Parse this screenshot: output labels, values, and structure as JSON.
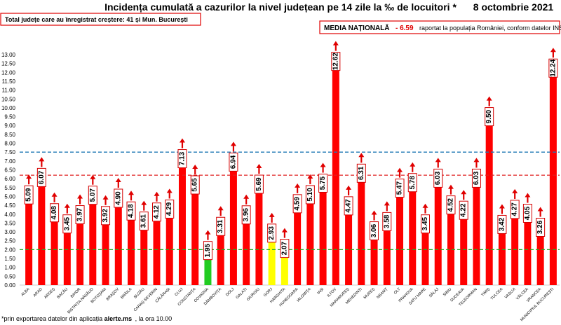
{
  "title": "Incidența cumulată a cazurilor la nivel județean pe 14 zile la ‰ de locuitori *",
  "date": "8 octombrie 2021",
  "summary": "Total județe care au înregistrat creștere:  41 și Mun. București",
  "media": {
    "label": "MEDIA NAȚIONALĂ",
    "value": "- 6.59",
    "rest": "raportat la populația României, conform datelor INS"
  },
  "footer": {
    "prefix": "*prin exportarea datelor din aplicația ",
    "bold": "alerte.ms",
    "suffix": ", la ora 10.00"
  },
  "colors": {
    "bar_red": "#ff0000",
    "bar_green": "#22cc22",
    "bar_yellow": "#ffff00",
    "arrow": "#e00000",
    "line_blue": "#1f78b4",
    "line_red": "#e02020",
    "line_green": "#22aa22"
  },
  "chart_data": {
    "type": "bar",
    "ylim": [
      0,
      13
    ],
    "yticks": [
      "0.00",
      "0.50",
      "1.00",
      "1.50",
      "2.00",
      "2.50",
      "3.00",
      "3.50",
      "4.00",
      "4.50",
      "5.00",
      "5.50",
      "6.00",
      "6.50",
      "7.00",
      "7.50",
      "8.00",
      "8.50",
      "9.00",
      "9.50",
      "10.00",
      "10.50",
      "11.00",
      "11.50",
      "12.00",
      "12.50",
      "13.00"
    ],
    "thresholds": [
      {
        "value": 7.5,
        "color": "blue",
        "style": "dashed"
      },
      {
        "value": 6.2,
        "color": "red",
        "style": "dashed"
      },
      {
        "value": 2.0,
        "color": "green",
        "style": "dashed"
      }
    ],
    "categories": [
      "ALBA",
      "ARAD",
      "ARGEȘ",
      "BACĂU",
      "BIHOR",
      "BISTRIȚA-NĂSĂUD",
      "BOTOȘANI",
      "BRAȘOV",
      "BRĂILA",
      "BUZĂU",
      "CARAȘ-SEVERIN",
      "CĂLĂRAȘI",
      "CLUJ",
      "CONSTANȚA",
      "COVASNA",
      "DÂMBOVIȚA",
      "DOLJ",
      "GALAȚI",
      "GIURGIU",
      "GORJ",
      "HARGHITA",
      "HUNEDOARA",
      "IALOMIȚA",
      "IAȘI",
      "ILFOV",
      "MARAMUREȘ",
      "MEHEDINȚI",
      "MUREȘ",
      "NEAMȚ",
      "OLT",
      "PRAHOVA",
      "SATU MARE",
      "SĂLAJ",
      "SIBIU",
      "SUCEAVA",
      "TELEORMAN",
      "TIMIȘ",
      "TULCEA",
      "VASLUI",
      "VÂLCEA",
      "VRANCEA",
      "MUNICIPIUL BUCUREȘTI"
    ],
    "values": [
      5.09,
      6.07,
      4.08,
      3.45,
      3.97,
      5.07,
      3.92,
      4.9,
      4.18,
      3.61,
      4.12,
      4.29,
      7.13,
      5.65,
      1.95,
      3.31,
      6.94,
      3.96,
      5.69,
      2.93,
      2.07,
      4.59,
      5.1,
      5.75,
      12.62,
      4.47,
      6.31,
      3.06,
      3.58,
      5.47,
      5.78,
      3.45,
      6.03,
      4.52,
      4.22,
      6.03,
      9.5,
      3.42,
      4.27,
      4.05,
      3.26,
      12.24
    ],
    "value_labels": [
      "5.09",
      "6.07",
      "4.08",
      "3.45",
      "3.97",
      "5.07",
      "3.92",
      "4.90",
      "4.18",
      "3.61",
      "4.12",
      "4.29",
      "7.13",
      "5.65",
      "1.95",
      "3.31",
      "6.94",
      "3.96",
      "5.69",
      "2.93",
      "2.07",
      "4.59",
      "5.10",
      "5.75",
      "12.62",
      "4.47",
      "6.31",
      "3.06",
      "3.58",
      "5.47",
      "5.78",
      "3.45",
      "6.03",
      "4.52",
      "4.22",
      "6.03",
      "9.50",
      "3.42",
      "4.27",
      "4.05",
      "3.26",
      "12.24"
    ],
    "bar_colors": [
      "red",
      "red",
      "red",
      "red",
      "red",
      "red",
      "red",
      "red",
      "red",
      "red",
      "red",
      "red",
      "red",
      "red",
      "green",
      "red",
      "red",
      "red",
      "red",
      "yellow",
      "yellow",
      "red",
      "red",
      "red",
      "red",
      "red",
      "red",
      "red",
      "red",
      "red",
      "red",
      "red",
      "red",
      "red",
      "red",
      "red",
      "red",
      "red",
      "red",
      "red",
      "red",
      "red"
    ],
    "arrows_up": [
      true,
      true,
      true,
      true,
      true,
      true,
      true,
      true,
      true,
      true,
      true,
      true,
      true,
      true,
      true,
      true,
      true,
      true,
      true,
      true,
      true,
      true,
      true,
      true,
      true,
      true,
      true,
      true,
      true,
      true,
      true,
      true,
      true,
      true,
      true,
      true,
      true,
      true,
      true,
      true,
      true,
      true
    ]
  }
}
